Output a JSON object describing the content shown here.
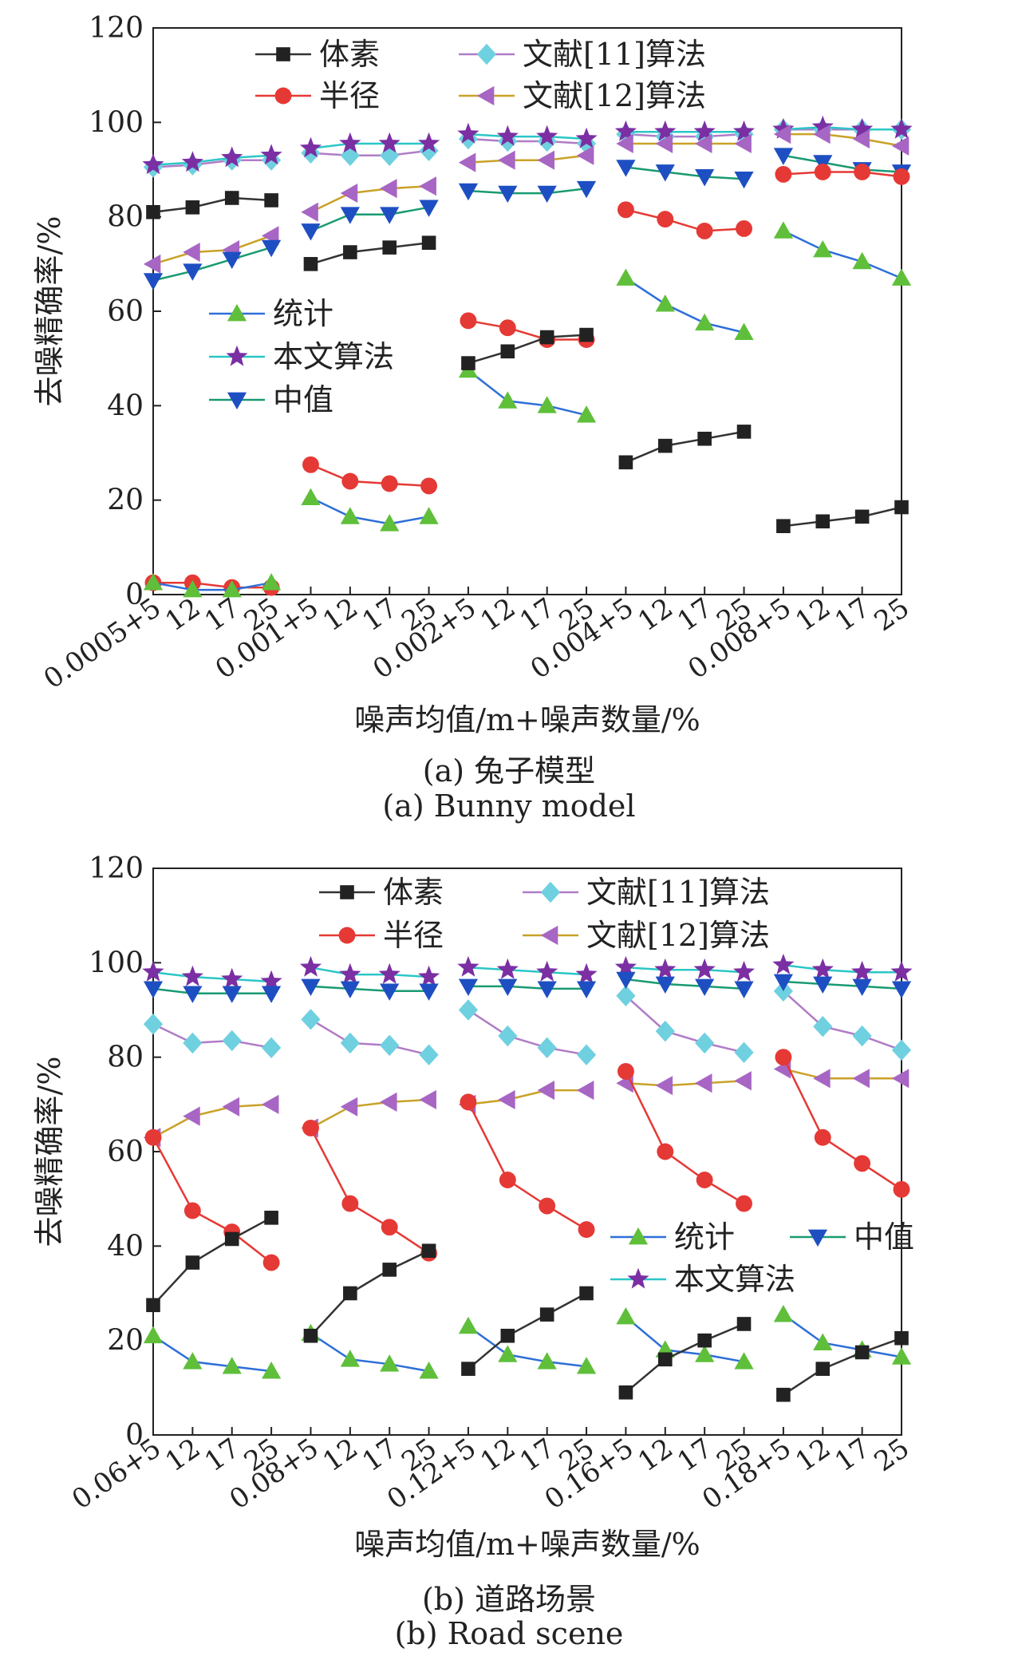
{
  "series_styles": [
    {
      "key": "voxel",
      "color": "#333333",
      "marker": "square",
      "marker_color": "#222222"
    },
    {
      "key": "radius",
      "color": "#e53935",
      "marker": "circle",
      "marker_color": "#e53935"
    },
    {
      "key": "ref11",
      "color": "#b07cc6",
      "marker": "diamond",
      "marker_color": "#6fd0e0"
    },
    {
      "key": "ref12",
      "color": "#c9a227",
      "marker": "tri-left",
      "marker_color": "#a766c4"
    },
    {
      "key": "stat",
      "color": "#2e6fd8",
      "marker": "tri-up",
      "marker_color": "#5fbf3a"
    },
    {
      "key": "ours",
      "color": "#2cc6c6",
      "marker": "star",
      "marker_color": "#7b2fa3"
    },
    {
      "key": "median",
      "color": "#1a9a72",
      "marker": "tri-down",
      "marker_color": "#1e4fc2"
    }
  ],
  "chart_data": [
    {
      "type": "line",
      "caption_cn": "(a) 兔子模型",
      "caption_en": "(a) Bunny  model",
      "xlabel": "噪声均值/m+噪声数量/%",
      "ylabel": "去噪精确率/%",
      "ylim": [
        0,
        120
      ],
      "yticks": [
        0,
        20,
        40,
        60,
        80,
        100,
        120
      ],
      "x_tick_labels": [
        "0.0005+5",
        "12",
        "17",
        "25",
        "0.001+5",
        "12",
        "17",
        "25",
        "0.002+5",
        "12",
        "17",
        "25",
        "0.004+5",
        "12",
        "17",
        "25",
        "0.008+5",
        "12",
        "17",
        "25"
      ],
      "groups": 5,
      "legends": [
        {
          "entries": [
            {
              "series": "voxel",
              "label": "体素"
            },
            {
              "series": "ref11",
              "label": "文献[11]算法"
            },
            {
              "series": "radius",
              "label": "半径"
            },
            {
              "series": "ref12",
              "label": "文献[12]算法"
            }
          ],
          "columns": 2,
          "position": "top-center"
        },
        {
          "entries": [
            {
              "series": "stat",
              "label": "统计"
            },
            {
              "series": "ours",
              "label": "本文算法"
            },
            {
              "series": "median",
              "label": "中值"
            }
          ],
          "columns": 1,
          "position": "center-left"
        }
      ],
      "series": [
        {
          "key": "voxel",
          "name": "体素",
          "values": [
            81,
            82,
            84,
            83.5,
            70,
            72.5,
            73.5,
            74.5,
            49,
            51.5,
            54.5,
            55,
            28,
            31.5,
            33,
            34.5,
            14.5,
            15.5,
            16.5,
            18.5
          ]
        },
        {
          "key": "radius",
          "name": "半径",
          "values": [
            2.5,
            2.5,
            1.5,
            1.5,
            27.5,
            24,
            23.5,
            23,
            58,
            56.5,
            54,
            54,
            81.5,
            79.5,
            77,
            77.5,
            89,
            89.5,
            89.5,
            88.5
          ]
        },
        {
          "key": "ref11",
          "name": "文献[11]算法",
          "values": [
            90.5,
            91,
            92,
            92,
            93.5,
            93,
            93,
            94,
            96.5,
            96,
            96,
            95.5,
            97.5,
            97,
            97,
            97.5,
            98.5,
            98.5,
            98.5,
            98.5
          ]
        },
        {
          "key": "ref12",
          "name": "文献[12]算法",
          "values": [
            70,
            72.5,
            73,
            76,
            81,
            85,
            86,
            86.5,
            91.5,
            92,
            92,
            93,
            95.5,
            95.5,
            95.5,
            95.5,
            97.5,
            97.5,
            96.5,
            95
          ]
        },
        {
          "key": "stat",
          "name": "统计",
          "values": [
            2.5,
            1,
            1,
            2.5,
            20.5,
            16.5,
            15,
            16.5,
            47.5,
            41,
            40,
            38,
            67,
            61.5,
            57.5,
            55.5,
            77,
            73,
            70.5,
            67
          ]
        },
        {
          "key": "ours",
          "name": "本文算法",
          "values": [
            91,
            91.5,
            92.5,
            93,
            94.5,
            95.5,
            95.5,
            95.5,
            97.5,
            97,
            97,
            96.5,
            98,
            98,
            98,
            98,
            98.5,
            99,
            98.5,
            98.5
          ]
        },
        {
          "key": "median",
          "name": "中值",
          "values": [
            66.5,
            68.5,
            71,
            73.5,
            77,
            80.5,
            80.5,
            82,
            85.5,
            85,
            85,
            86,
            90.5,
            89.5,
            88.5,
            88,
            93,
            91.5,
            90,
            89.5
          ]
        }
      ]
    },
    {
      "type": "line",
      "caption_cn": "(b) 道路场景",
      "caption_en": "(b) Road scene",
      "xlabel": "噪声均值/m+噪声数量/%",
      "ylabel": "去噪精确率/%",
      "ylim": [
        0,
        120
      ],
      "yticks": [
        0,
        20,
        40,
        60,
        80,
        100,
        120
      ],
      "x_tick_labels": [
        "0.06+5",
        "12",
        "17",
        "25",
        "0.08+5",
        "12",
        "17",
        "25",
        "0.12+5",
        "12",
        "17",
        "25",
        "0.16+5",
        "12",
        "17",
        "25",
        "0.18+5",
        "12",
        "17",
        "25"
      ],
      "groups": 5,
      "legends": [
        {
          "entries": [
            {
              "series": "voxel",
              "label": "体素"
            },
            {
              "series": "ref11",
              "label": "文献[11]算法"
            },
            {
              "series": "radius",
              "label": "半径"
            },
            {
              "series": "ref12",
              "label": "文献[12]算法"
            }
          ],
          "columns": 2,
          "position": "top-center"
        },
        {
          "entries": [
            {
              "series": "stat",
              "label": "统计"
            },
            {
              "series": "median",
              "label": "中值"
            },
            {
              "series": "ours",
              "label": "本文算法"
            }
          ],
          "columns": 2,
          "position": "center-right"
        }
      ],
      "series": [
        {
          "key": "voxel",
          "name": "体素",
          "values": [
            27.5,
            36.5,
            41.5,
            46,
            21,
            30,
            35,
            39,
            14,
            21,
            25.5,
            30,
            9,
            16,
            20,
            23.5,
            8.5,
            14,
            17.5,
            20.5
          ]
        },
        {
          "key": "radius",
          "name": "半径",
          "values": [
            63,
            47.5,
            43,
            36.5,
            65,
            49,
            44,
            38.5,
            70.5,
            54,
            48.5,
            43.5,
            77,
            60,
            54,
            49,
            80,
            63,
            57.5,
            52
          ]
        },
        {
          "key": "ref11",
          "name": "文献[11]算法",
          "values": [
            87,
            83,
            83.5,
            82,
            88,
            83,
            82.5,
            80.5,
            90,
            84.5,
            82,
            80.5,
            93,
            85.5,
            83,
            81,
            94,
            86.5,
            84.5,
            81.5
          ]
        },
        {
          "key": "ref12",
          "name": "文献[12]算法",
          "values": [
            63,
            67.5,
            69.5,
            70,
            65,
            69.5,
            70.5,
            71,
            70,
            71,
            73,
            73,
            74.5,
            74,
            74.5,
            75,
            77.5,
            75.5,
            75.5,
            75.5
          ]
        },
        {
          "key": "stat",
          "name": "统计",
          "values": [
            21,
            15.5,
            14.5,
            13.5,
            21.5,
            16,
            15,
            13.5,
            23,
            17,
            15.5,
            14.5,
            25,
            18,
            17,
            15.5,
            25.5,
            19.5,
            18,
            16.5
          ]
        },
        {
          "key": "ours",
          "name": "本文算法",
          "values": [
            98,
            97,
            96.5,
            96,
            99,
            97.5,
            97.5,
            97,
            99,
            98.5,
            98,
            97.5,
            99,
            98.5,
            98.5,
            98,
            99.5,
            98.5,
            98,
            98
          ]
        },
        {
          "key": "median",
          "name": "中值",
          "values": [
            94.5,
            93.5,
            93.5,
            93.5,
            95,
            94.5,
            94,
            94,
            95,
            95,
            94.5,
            94.5,
            96.5,
            95.5,
            95,
            94.5,
            96,
            95.5,
            95,
            94.5
          ]
        }
      ]
    }
  ]
}
